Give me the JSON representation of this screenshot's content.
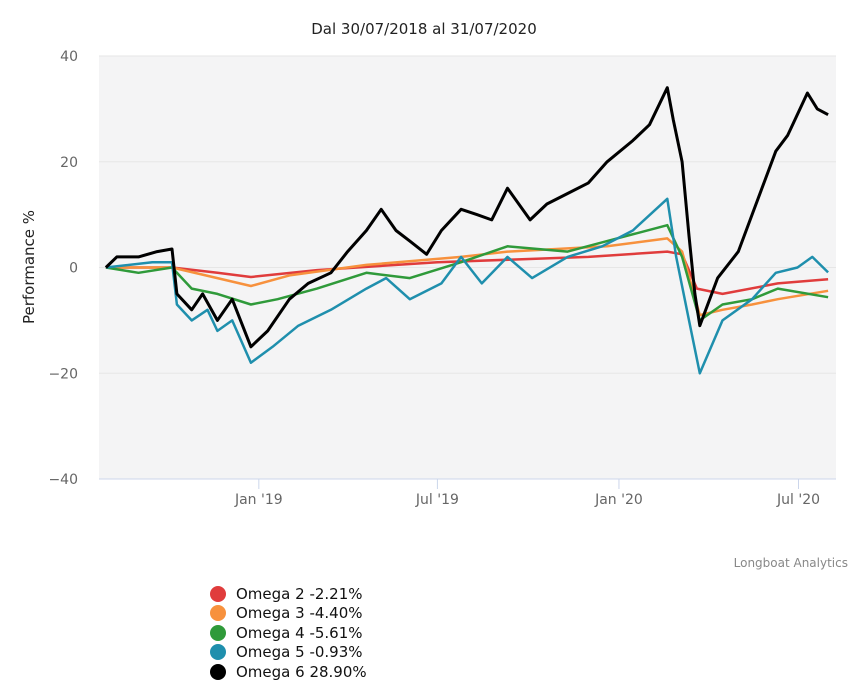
{
  "chart_data": {
    "type": "line",
    "title": "Dal 30/07/2018 al 31/07/2020",
    "ylabel": "Performance %",
    "xlabel": "",
    "ylim": [
      -40,
      40
    ],
    "yticks": [
      "40",
      "20",
      "0",
      "−20",
      "−40"
    ],
    "ytick_values": [
      40,
      20,
      0,
      -20,
      -40
    ],
    "xlim": [
      "2018-07-23",
      "2020-08-08"
    ],
    "xticks": [
      {
        "label": "Jan '19",
        "date": "2019-01-01"
      },
      {
        "label": "Jul '19",
        "date": "2019-07-01"
      },
      {
        "label": "Jan '20",
        "date": "2020-01-01"
      },
      {
        "label": "Jul '20",
        "date": "2020-07-01"
      }
    ],
    "grid": true,
    "legend_position": "bottom-left",
    "credit": "Longboat Analytics",
    "series": [
      {
        "name": "Omega 2",
        "legend": "Omega 2 -2.21%",
        "color": "#e03c3c",
        "points": [
          [
            "2018-07-30",
            0
          ],
          [
            "2018-10-05",
            0
          ],
          [
            "2018-11-20",
            -1
          ],
          [
            "2018-12-24",
            -1.8
          ],
          [
            "2019-03-01",
            -0.5
          ],
          [
            "2019-07-01",
            1
          ],
          [
            "2019-12-01",
            2
          ],
          [
            "2020-02-19",
            3
          ],
          [
            "2020-03-05",
            2.5
          ],
          [
            "2020-03-20",
            -4
          ],
          [
            "2020-04-15",
            -5
          ],
          [
            "2020-06-10",
            -3
          ],
          [
            "2020-07-31",
            -2.21
          ]
        ]
      },
      {
        "name": "Omega 3",
        "legend": "Omega 3 -4.40%",
        "color": "#f7913d",
        "points": [
          [
            "2018-07-30",
            0
          ],
          [
            "2018-10-05",
            0
          ],
          [
            "2018-11-20",
            -2
          ],
          [
            "2018-12-24",
            -3.5
          ],
          [
            "2019-02-01",
            -1.5
          ],
          [
            "2019-04-20",
            0.5
          ],
          [
            "2019-07-25",
            2
          ],
          [
            "2019-09-10",
            3
          ],
          [
            "2019-12-20",
            4
          ],
          [
            "2020-02-19",
            5.5
          ],
          [
            "2020-03-05",
            3
          ],
          [
            "2020-03-23",
            -9
          ],
          [
            "2020-04-15",
            -8
          ],
          [
            "2020-05-15",
            -7
          ],
          [
            "2020-06-10",
            -6
          ],
          [
            "2020-07-31",
            -4.4
          ]
        ]
      },
      {
        "name": "Omega 4",
        "legend": "Omega 4 -5.61%",
        "color": "#2f9a3a",
        "points": [
          [
            "2018-07-30",
            0
          ],
          [
            "2018-09-01",
            -1
          ],
          [
            "2018-10-05",
            0
          ],
          [
            "2018-10-25",
            -4
          ],
          [
            "2018-11-20",
            -5
          ],
          [
            "2018-12-24",
            -7
          ],
          [
            "2019-01-20",
            -6
          ],
          [
            "2019-03-01",
            -4
          ],
          [
            "2019-04-20",
            -1
          ],
          [
            "2019-06-03",
            -2
          ],
          [
            "2019-07-25",
            1
          ],
          [
            "2019-09-10",
            4
          ],
          [
            "2019-11-10",
            3
          ],
          [
            "2019-12-20",
            5
          ],
          [
            "2020-02-19",
            8
          ],
          [
            "2020-03-05",
            2
          ],
          [
            "2020-03-23",
            -10
          ],
          [
            "2020-04-15",
            -7
          ],
          [
            "2020-05-15",
            -6
          ],
          [
            "2020-06-10",
            -4
          ],
          [
            "2020-07-31",
            -5.61
          ]
        ]
      },
      {
        "name": "Omega 5",
        "legend": "Omega 5 -0.93%",
        "color": "#1f8fad",
        "points": [
          [
            "2018-07-30",
            0
          ],
          [
            "2018-09-15",
            1
          ],
          [
            "2018-10-05",
            1
          ],
          [
            "2018-10-10",
            -7
          ],
          [
            "2018-10-25",
            -10
          ],
          [
            "2018-11-10",
            -8
          ],
          [
            "2018-11-20",
            -12
          ],
          [
            "2018-12-05",
            -10
          ],
          [
            "2018-12-24",
            -18
          ],
          [
            "2019-01-15",
            -15
          ],
          [
            "2019-02-10",
            -11
          ],
          [
            "2019-03-15",
            -8
          ],
          [
            "2019-04-20",
            -4
          ],
          [
            "2019-05-10",
            -2
          ],
          [
            "2019-06-03",
            -6
          ],
          [
            "2019-07-05",
            -3
          ],
          [
            "2019-07-25",
            2
          ],
          [
            "2019-08-15",
            -3
          ],
          [
            "2019-09-10",
            2
          ],
          [
            "2019-10-05",
            -2
          ],
          [
            "2019-11-10",
            2
          ],
          [
            "2019-12-15",
            4
          ],
          [
            "2020-01-15",
            7
          ],
          [
            "2020-02-19",
            13
          ],
          [
            "2020-02-28",
            2
          ],
          [
            "2020-03-12",
            -10
          ],
          [
            "2020-03-23",
            -20
          ],
          [
            "2020-04-15",
            -10
          ],
          [
            "2020-05-15",
            -6
          ],
          [
            "2020-06-08",
            -1
          ],
          [
            "2020-06-30",
            0
          ],
          [
            "2020-07-15",
            2
          ],
          [
            "2020-07-31",
            -0.93
          ]
        ]
      },
      {
        "name": "Omega 6",
        "legend": "Omega 6 28.90%",
        "color": "#000000",
        "points": [
          [
            "2018-07-30",
            0
          ],
          [
            "2018-08-10",
            2
          ],
          [
            "2018-09-01",
            2
          ],
          [
            "2018-09-20",
            3
          ],
          [
            "2018-10-05",
            3.5
          ],
          [
            "2018-10-10",
            -5
          ],
          [
            "2018-10-25",
            -8
          ],
          [
            "2018-11-05",
            -5
          ],
          [
            "2018-11-20",
            -10
          ],
          [
            "2018-12-05",
            -6
          ],
          [
            "2018-12-24",
            -15
          ],
          [
            "2019-01-10",
            -12
          ],
          [
            "2019-02-01",
            -6
          ],
          [
            "2019-02-20",
            -3
          ],
          [
            "2019-03-15",
            -1
          ],
          [
            "2019-04-01",
            3
          ],
          [
            "2019-04-20",
            7
          ],
          [
            "2019-05-05",
            11
          ],
          [
            "2019-05-20",
            7
          ],
          [
            "2019-06-03",
            5
          ],
          [
            "2019-06-20",
            2.5
          ],
          [
            "2019-07-05",
            7
          ],
          [
            "2019-07-25",
            11
          ],
          [
            "2019-08-10",
            10
          ],
          [
            "2019-08-25",
            9
          ],
          [
            "2019-09-10",
            15
          ],
          [
            "2019-10-03",
            9
          ],
          [
            "2019-10-20",
            12
          ],
          [
            "2019-11-10",
            14
          ],
          [
            "2019-12-01",
            16
          ],
          [
            "2019-12-20",
            20
          ],
          [
            "2020-01-15",
            24
          ],
          [
            "2020-02-01",
            27
          ],
          [
            "2020-02-19",
            34
          ],
          [
            "2020-02-25",
            28
          ],
          [
            "2020-03-05",
            20
          ],
          [
            "2020-03-12",
            6
          ],
          [
            "2020-03-18",
            -5
          ],
          [
            "2020-03-23",
            -11
          ],
          [
            "2020-04-10",
            -2
          ],
          [
            "2020-05-01",
            3
          ],
          [
            "2020-05-15",
            10
          ],
          [
            "2020-06-08",
            22
          ],
          [
            "2020-06-20",
            25
          ],
          [
            "2020-07-10",
            33
          ],
          [
            "2020-07-20",
            30
          ],
          [
            "2020-07-31",
            28.9
          ]
        ]
      }
    ]
  }
}
